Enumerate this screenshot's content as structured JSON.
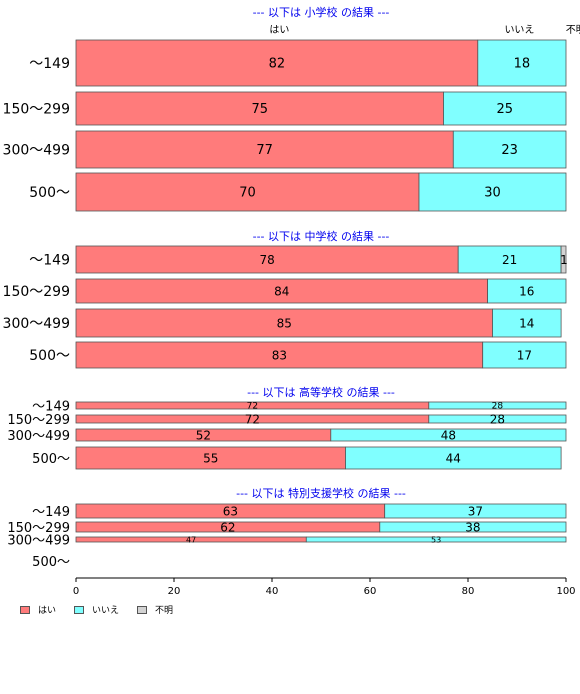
{
  "chart_data": {
    "type": "bar",
    "orientation": "horizontal",
    "stacked": true,
    "categories": [
      "～149",
      "150～299",
      "300～499",
      "500～"
    ],
    "series_names": [
      "はい",
      "いいえ",
      "不明"
    ],
    "colors": [
      "#ff7b7b",
      "#80ffff",
      "#d3d3d3"
    ],
    "xlim": [
      0,
      100
    ],
    "xticks": [
      0,
      20,
      40,
      60,
      80,
      100
    ],
    "top_series_labels": [
      "はい",
      "いいえ",
      "不明"
    ],
    "panels": [
      {
        "title": "--- 以下は 小学校 の結果 ---",
        "bars": [
          {
            "values": [
              82,
              18,
              0
            ],
            "labels": [
              "82",
              "18",
              ""
            ]
          },
          {
            "values": [
              75,
              25,
              0
            ],
            "labels": [
              "75",
              "25",
              ""
            ]
          },
          {
            "values": [
              77,
              23,
              0
            ],
            "labels": [
              "77",
              "23",
              ""
            ]
          },
          {
            "values": [
              70,
              30,
              0
            ],
            "labels": [
              "70",
              "30",
              ""
            ]
          }
        ]
      },
      {
        "title": "--- 以下は 中学校 の結果 ---",
        "bars": [
          {
            "values": [
              78,
              21,
              1
            ],
            "labels": [
              "78",
              "21",
              "1"
            ]
          },
          {
            "values": [
              84,
              16,
              0
            ],
            "labels": [
              "84",
              "16",
              ""
            ]
          },
          {
            "values": [
              85,
              14,
              0
            ],
            "labels": [
              "85",
              "14",
              ""
            ]
          },
          {
            "values": [
              83,
              17,
              0
            ],
            "labels": [
              "83",
              "17",
              ""
            ]
          }
        ]
      },
      {
        "title": "--- 以下は 高等学校 の結果 ---",
        "bars": [
          {
            "values": [
              72,
              28,
              0
            ],
            "labels": [
              "72",
              "28",
              ""
            ]
          },
          {
            "values": [
              72,
              28,
              0
            ],
            "labels": [
              "72",
              "28",
              ""
            ]
          },
          {
            "values": [
              52,
              48,
              0
            ],
            "labels": [
              "52",
              "48",
              ""
            ]
          },
          {
            "values": [
              55,
              44,
              0
            ],
            "labels": [
              "55",
              "44",
              ""
            ]
          }
        ]
      },
      {
        "title": "--- 以下は 特別支援学校 の結果 ---",
        "bars": [
          {
            "values": [
              63,
              37,
              0
            ],
            "labels": [
              "63",
              "37",
              ""
            ]
          },
          {
            "values": [
              62,
              38,
              0
            ],
            "labels": [
              "62",
              "38",
              ""
            ]
          },
          {
            "values": [
              47,
              53,
              0
            ],
            "labels": [
              "47",
              "53",
              ""
            ]
          },
          null
        ]
      }
    ],
    "legend": {
      "position": "bottom-left",
      "items": [
        "はい",
        "いいえ",
        "不明"
      ]
    }
  }
}
